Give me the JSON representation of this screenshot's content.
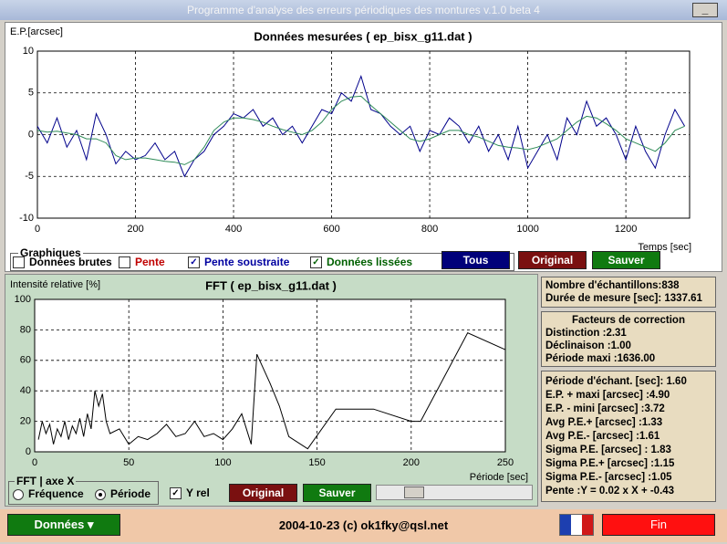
{
  "window": {
    "title": "Programme d'analyse des erreurs périodiques des montures v.1.0 beta 4",
    "minimize": "_"
  },
  "chart_data": [
    {
      "type": "line",
      "title": "Données mesurées ( ep_bisx_g11.dat )",
      "y_label": "E.P.[arcsec]",
      "x_label": "Temps [sec]",
      "x": [
        0,
        20,
        40,
        60,
        80,
        100,
        120,
        140,
        160,
        180,
        200,
        220,
        240,
        260,
        280,
        300,
        320,
        340,
        360,
        380,
        400,
        420,
        440,
        460,
        480,
        500,
        520,
        540,
        560,
        580,
        600,
        620,
        640,
        660,
        680,
        700,
        720,
        740,
        760,
        780,
        800,
        820,
        840,
        860,
        880,
        900,
        920,
        940,
        960,
        980,
        1000,
        1020,
        1040,
        1060,
        1080,
        1100,
        1120,
        1140,
        1160,
        1180,
        1200,
        1220,
        1240,
        1260,
        1280,
        1300,
        1320
      ],
      "series": [
        {
          "color": "#00008b",
          "values": [
            1,
            -1,
            2,
            -1.5,
            0.5,
            -3,
            2.5,
            0,
            -3.5,
            -2,
            -3,
            -2.5,
            -1,
            -3,
            -2,
            -5,
            -3,
            -2,
            0,
            1,
            2.5,
            2,
            3,
            1,
            2,
            0,
            1,
            -1,
            1,
            3,
            2.5,
            5,
            4,
            7,
            3,
            2.5,
            1,
            0,
            1,
            -2,
            0.5,
            0,
            2,
            1,
            -1,
            1,
            -2,
            0,
            -3,
            1,
            -4,
            -2,
            0,
            -3,
            2,
            0,
            4,
            1,
            2,
            0,
            -3,
            1,
            -2,
            -4,
            0,
            3,
            1
          ]
        },
        {
          "color": "#2e8b57",
          "values": [
            0.5,
            0.3,
            0.4,
            0.2,
            0,
            -0.5,
            -0.5,
            -1,
            -2.5,
            -3,
            -2.8,
            -2.8,
            -3,
            -3.2,
            -3.3,
            -3.6,
            -3,
            -1.5,
            0.5,
            1.5,
            2,
            2,
            1.8,
            1.5,
            1,
            0.6,
            0.3,
            0,
            0.5,
            1.5,
            3,
            4,
            4.5,
            4.6,
            3.5,
            2.5,
            1.5,
            0.5,
            -0.5,
            -0.8,
            -0.5,
            0,
            0.5,
            0.5,
            0,
            -0.3,
            -0.8,
            -1.3,
            -1.5,
            -1.6,
            -1.8,
            -1.5,
            -1,
            -0.5,
            0.5,
            1.5,
            2.2,
            2,
            1.3,
            0.5,
            -0.5,
            -1,
            -1.5,
            -2,
            -1,
            0.5,
            1
          ]
        }
      ],
      "xlim": [
        0,
        1330
      ],
      "ylim": [
        -10,
        10
      ],
      "xticks": [
        0,
        200,
        400,
        600,
        800,
        1000,
        1200
      ],
      "yticks": [
        -10,
        -5,
        0,
        5,
        10
      ],
      "grid": true
    },
    {
      "type": "line",
      "title": "FFT ( ep_bisx_g11.dat )",
      "y_label": "Intensité relative [%]",
      "x_label": "Période [sec]",
      "x": [
        2,
        4,
        6,
        8,
        10,
        12,
        14,
        16,
        18,
        20,
        22,
        24,
        26,
        28,
        30,
        32,
        34,
        36,
        38,
        40,
        45,
        50,
        55,
        60,
        65,
        70,
        75,
        80,
        85,
        90,
        95,
        100,
        105,
        110,
        115,
        118,
        125,
        130,
        135,
        145,
        160,
        180,
        200,
        205,
        230,
        250
      ],
      "series": [
        {
          "color": "#000000",
          "values": [
            8,
            20,
            12,
            18,
            5,
            15,
            10,
            20,
            8,
            17,
            12,
            22,
            10,
            25,
            15,
            40,
            30,
            38,
            20,
            12,
            15,
            5,
            10,
            8,
            12,
            18,
            10,
            12,
            20,
            10,
            12,
            8,
            15,
            25,
            5,
            64,
            45,
            30,
            10,
            2,
            28,
            28,
            20,
            20,
            78,
            67
          ]
        }
      ],
      "xlim": [
        0,
        250
      ],
      "ylim": [
        0,
        100
      ],
      "xticks": [
        0,
        50,
        100,
        150,
        200,
        250
      ],
      "yticks": [
        0,
        20,
        40,
        60,
        80,
        100
      ],
      "grid": true
    }
  ],
  "graphiques": {
    "label": "Graphiques",
    "options": [
      {
        "label": "Données brutes",
        "checked": false
      },
      {
        "label": "Pente",
        "checked": false
      },
      {
        "label": "Pente soustraite",
        "checked": true
      },
      {
        "label": "Données lissées",
        "checked": true
      }
    ],
    "buttons": [
      "Tous",
      "Original",
      "Sauver"
    ]
  },
  "fft_controls": {
    "group_label": "FFT | axe X",
    "radios": [
      {
        "label": "Fréquence",
        "checked": false
      },
      {
        "label": "Période",
        "checked": true
      }
    ],
    "y_rel": {
      "label": "Y rel",
      "checked": true
    },
    "buttons": [
      "Original",
      "Sauver"
    ]
  },
  "info": {
    "samples": "Nombre d'échantillons:838",
    "duration": "Durée de mesure [sec]: 1337.61"
  },
  "correction": {
    "title": "Facteurs de correction",
    "lines": [
      "Distinction :2.31",
      "Déclinaison :1.00",
      "Période maxi :1636.00"
    ]
  },
  "stats": [
    "Période d'échant. [sec]: 1.60",
    "E.P. + maxi [arcsec] :4.90",
    "E.P. - mini [arcsec] :3.72",
    "Avg P.E.+ [arcsec] :1.33",
    "Avg P.E.- [arcsec] :1.61",
    "Sigma P.E. [arcsec] : 1.83",
    "Sigma P.E.+ [arcsec] :1.15",
    "Sigma P.E.- [arcsec] :1.05",
    "Pente :Y = 0.02 x X + -0.43"
  ],
  "footer": {
    "menu": "Données",
    "credit": "2004-10-23 (c) ok1fky@qsl.net",
    "exit": "Fin"
  }
}
